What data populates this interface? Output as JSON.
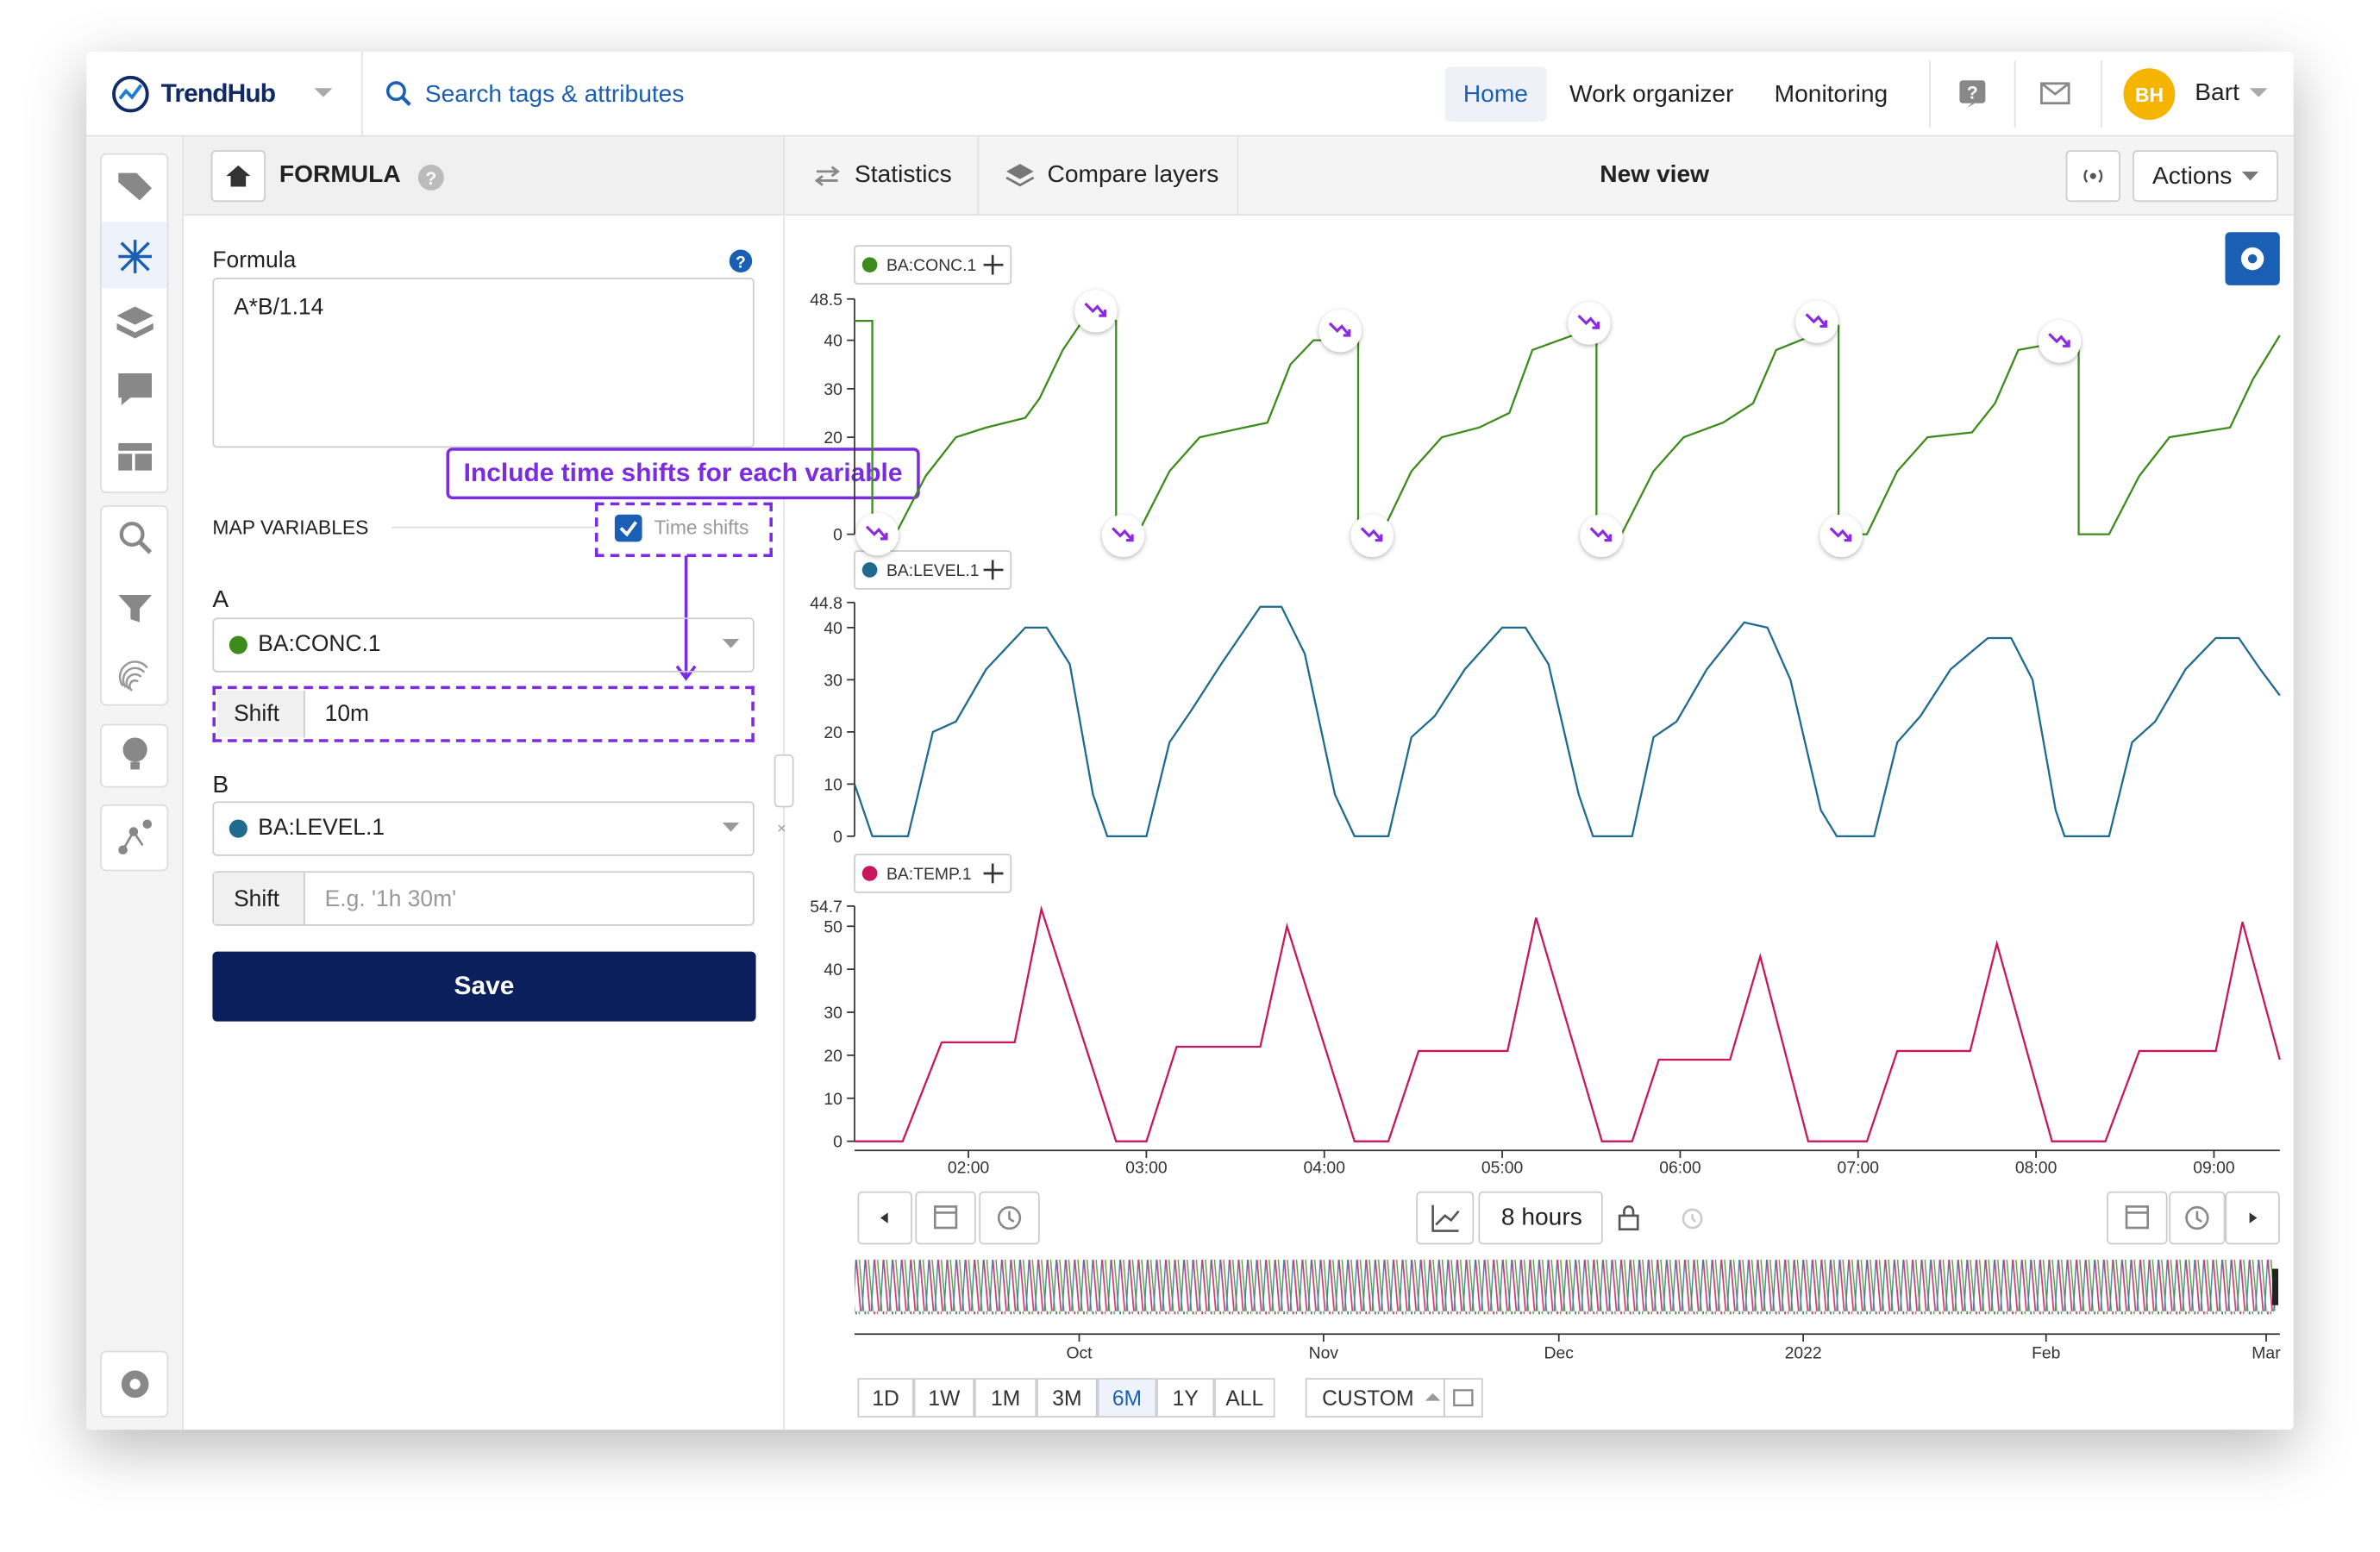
{
  "topbar": {
    "brand": "TrendHub",
    "search": "Search tags & attributes",
    "nav": [
      "Home",
      "Work organizer",
      "Monitoring"
    ],
    "avatar": "BH",
    "user": "Bart"
  },
  "panel": {
    "title": "FORMULA",
    "formula_label": "Formula",
    "formula": "A*B/1.14",
    "callout": "Include time shifts for each variable",
    "map_variables": "MAP VARIABLES",
    "time_shifts": "Time shifts",
    "variables": [
      {
        "letter": "A",
        "tag": "BA:CONC.1",
        "shift_label": "Shift",
        "shift": "10m"
      },
      {
        "letter": "B",
        "tag": "BA:LEVEL.1",
        "shift_label": "Shift",
        "shift_placeholder": "E.g. '1h 30m'"
      }
    ],
    "save": "Save"
  },
  "toolbar": {
    "statistics": "Statistics",
    "compare": "Compare layers",
    "view": "New view",
    "actions": "Actions"
  },
  "chart_data": [
    {
      "type": "line",
      "xlim": [
        1.36,
        9.37
      ],
      "ylim": [
        0,
        48.5
      ],
      "yticks": [
        0,
        20,
        30,
        40,
        48.5
      ],
      "x": [
        1.36,
        1.46,
        1.46,
        1.59,
        1.76,
        1.93,
        2.1,
        2.32,
        2.4,
        2.53,
        2.66,
        2.83,
        2.83,
        2.95,
        3.13,
        3.3,
        3.55,
        3.68,
        3.81,
        3.94,
        4.15,
        4.19,
        4.19,
        4.32,
        4.49,
        4.66,
        4.87,
        5.04,
        5.17,
        5.47,
        5.53,
        5.53,
        5.67,
        5.85,
        6.02,
        6.24,
        6.41,
        6.54,
        6.88,
        6.89,
        6.89,
        7.05,
        7.22,
        7.39,
        7.64,
        7.77,
        7.9,
        8.2,
        8.24,
        8.24,
        8.41,
        8.58,
        8.75,
        9.09,
        9.22,
        9.37
      ],
      "series": [
        {
          "name": "BA:CONC.1",
          "color": "#3d8c1b",
          "values": [
            44,
            44,
            0,
            0,
            12,
            20,
            22,
            24,
            28,
            38,
            45,
            44,
            0,
            0,
            13,
            20,
            22,
            23,
            35,
            40,
            40,
            40,
            0,
            0,
            13,
            20,
            22,
            25,
            38,
            42,
            42,
            0,
            0,
            13,
            20,
            23,
            27,
            38,
            43,
            43,
            0,
            0,
            13,
            20,
            21,
            27,
            38,
            40,
            40,
            0,
            0,
            12,
            20,
            22,
            32,
            41
          ]
        }
      ]
    },
    {
      "type": "line",
      "xlim": [
        1.36,
        9.37
      ],
      "ylim": [
        0,
        44.8
      ],
      "yticks": [
        0,
        10,
        20,
        30,
        40,
        44.8
      ],
      "x": [
        1.36,
        1.46,
        1.66,
        1.8,
        1.93,
        2.1,
        2.32,
        2.44,
        2.57,
        2.7,
        2.78,
        3.0,
        3.13,
        3.25,
        3.42,
        3.64,
        3.76,
        3.89,
        4.06,
        4.17,
        4.36,
        4.49,
        4.62,
        4.79,
        5.0,
        5.13,
        5.26,
        5.43,
        5.51,
        5.73,
        5.85,
        5.98,
        6.15,
        6.36,
        6.49,
        6.62,
        6.79,
        6.88,
        7.09,
        7.22,
        7.35,
        7.52,
        7.73,
        7.86,
        7.98,
        8.11,
        8.16,
        8.41,
        8.54,
        8.67,
        8.84,
        9.01,
        9.14,
        9.26,
        9.37
      ],
      "series": [
        {
          "name": "BA:LEVEL.1",
          "color": "#1f6b8f",
          "values": [
            10,
            0,
            0,
            20,
            22,
            32,
            40,
            40,
            33,
            8,
            0,
            0,
            18,
            24,
            33,
            44,
            44,
            35,
            8,
            0,
            0,
            19,
            23,
            32,
            40,
            40,
            33,
            8,
            0,
            0,
            19,
            22,
            32,
            41,
            40,
            30,
            5,
            0,
            0,
            18,
            23,
            32,
            38,
            38,
            30,
            5,
            0,
            0,
            18,
            22,
            32,
            38,
            38,
            32,
            27
          ]
        }
      ]
    },
    {
      "type": "line",
      "xlim": [
        1.36,
        9.37
      ],
      "ylim": [
        0,
        54.7
      ],
      "yticks": [
        0,
        10,
        20,
        30,
        40,
        50,
        54.7
      ],
      "xticks": [
        {
          "value": 2,
          "label": "02:00"
        },
        {
          "value": 3,
          "label": "03:00"
        },
        {
          "value": 4,
          "label": "04:00"
        },
        {
          "value": 5,
          "label": "05:00"
        },
        {
          "value": 6,
          "label": "06:00"
        },
        {
          "value": 7,
          "label": "07:00"
        },
        {
          "value": 8,
          "label": "08:00"
        },
        {
          "value": 9,
          "label": "09:00"
        }
      ],
      "x": [
        1.36,
        1.63,
        1.85,
        2.26,
        2.41,
        2.83,
        3.0,
        3.17,
        3.64,
        3.79,
        4.17,
        4.36,
        4.53,
        5.03,
        5.19,
        5.56,
        5.73,
        5.88,
        6.28,
        6.45,
        6.72,
        7.05,
        7.22,
        7.63,
        7.78,
        8.09,
        8.39,
        8.58,
        9.01,
        9.16,
        9.37
      ],
      "series": [
        {
          "name": "BA:TEMP.1",
          "color": "#c8175d",
          "values": [
            0,
            0,
            23,
            23,
            54,
            0,
            0,
            22,
            22,
            50,
            0,
            0,
            21,
            21,
            52,
            0,
            0,
            19,
            19,
            43,
            0,
            0,
            21,
            21,
            46,
            0,
            0,
            21,
            21,
            51,
            19
          ]
        }
      ]
    }
  ],
  "timebar": {
    "window": "8 hours",
    "overview_ticks": [
      "Oct",
      "Nov",
      "Dec",
      "2022",
      "Feb",
      "Mar"
    ],
    "ranges": [
      "1D",
      "1W",
      "1M",
      "3M",
      "6M",
      "1Y",
      "ALL"
    ],
    "active_range": "6M",
    "custom": "CUSTOM"
  }
}
